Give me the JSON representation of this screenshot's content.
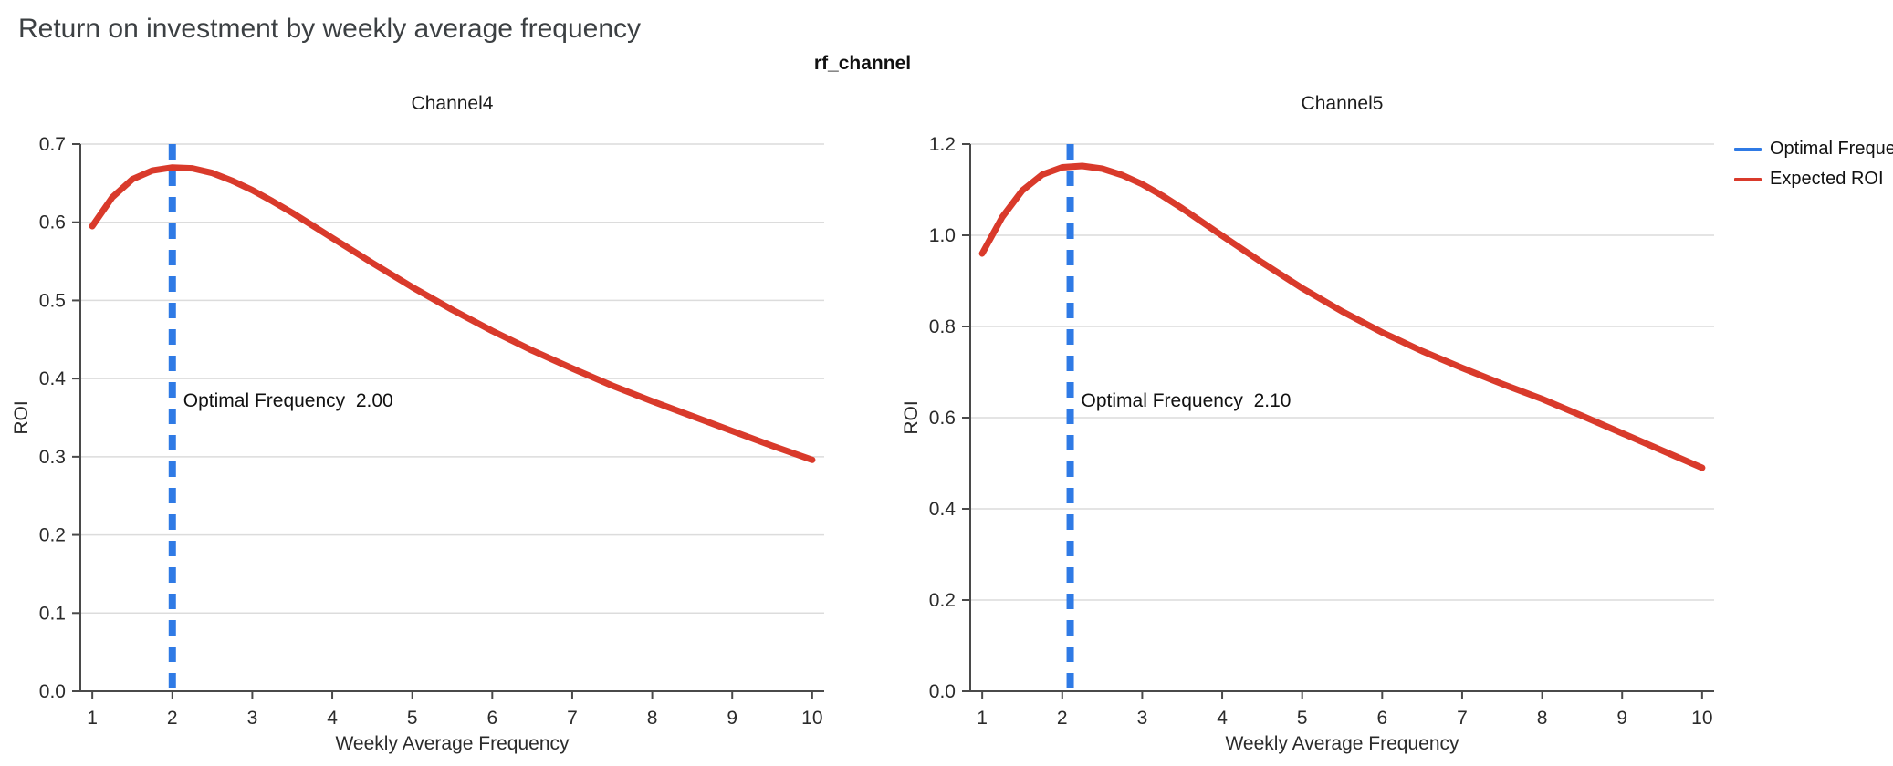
{
  "page_title": "Return on investment by weekly average frequency",
  "figure": {
    "suptitle": "rf_channel",
    "legend": {
      "position": "top-right",
      "items": [
        {
          "label": "Optimal Frequency",
          "color": "#2f7ae5",
          "style": "dashed"
        },
        {
          "label": "Expected ROI",
          "color": "#d93a2b",
          "style": "solid"
        }
      ]
    }
  },
  "chart_data": {
    "type": "line",
    "grid": "horizontal",
    "style": {
      "roi_line": "#d93a2b",
      "optimal_line": "#2f7ae5",
      "grid": "#dcdcdc",
      "axis": "#4a4a4a",
      "text": "#2b2b2b",
      "annotation_text": "#111111"
    },
    "charts": [
      {
        "title": "Channel4",
        "xlabel": "Weekly Average Frequency",
        "ylabel": "ROI",
        "xlim": [
          0.85,
          10.15
        ],
        "ylim": [
          0,
          0.7
        ],
        "xticks": [
          1,
          2,
          3,
          4,
          5,
          6,
          7,
          8,
          9,
          10
        ],
        "yticks": [
          0,
          0.1,
          0.2,
          0.3,
          0.4,
          0.5,
          0.6,
          0.7
        ],
        "optimal_frequency": 2.0,
        "annotation": {
          "label": "Optimal Frequency",
          "value": "2.00"
        },
        "series": [
          {
            "name": "Expected ROI",
            "x": [
              1,
              1.25,
              1.5,
              1.75,
              2,
              2.25,
              2.5,
              2.75,
              3,
              3.25,
              3.5,
              3.75,
              4,
              4.5,
              5,
              5.5,
              6,
              6.5,
              7,
              7.5,
              8,
              8.5,
              9,
              9.5,
              10
            ],
            "y": [
              0.595,
              0.632,
              0.655,
              0.666,
              0.67,
              0.669,
              0.663,
              0.653,
              0.641,
              0.627,
              0.612,
              0.596,
              0.58,
              0.548,
              0.517,
              0.488,
              0.461,
              0.436,
              0.413,
              0.391,
              0.371,
              0.352,
              0.333,
              0.314,
              0.296
            ]
          }
        ]
      },
      {
        "title": "Channel5",
        "xlabel": "Weekly Average Frequency",
        "ylabel": "ROI",
        "xlim": [
          0.85,
          10.15
        ],
        "ylim": [
          0,
          1.2
        ],
        "xticks": [
          1,
          2,
          3,
          4,
          5,
          6,
          7,
          8,
          9,
          10
        ],
        "yticks": [
          0,
          0.2,
          0.4,
          0.6,
          0.8,
          1.0,
          1.2
        ],
        "optimal_frequency": 2.1,
        "annotation": {
          "label": "Optimal Frequency",
          "value": "2.10"
        },
        "series": [
          {
            "name": "Expected ROI",
            "x": [
              1,
              1.25,
              1.5,
              1.75,
              2,
              2.25,
              2.5,
              2.75,
              3,
              3.25,
              3.5,
              3.75,
              4,
              4.5,
              5,
              5.5,
              6,
              6.5,
              7,
              7.5,
              8,
              8.5,
              9,
              9.5,
              10
            ],
            "y": [
              0.96,
              1.04,
              1.098,
              1.133,
              1.149,
              1.152,
              1.146,
              1.132,
              1.112,
              1.087,
              1.059,
              1.029,
              0.999,
              0.94,
              0.884,
              0.833,
              0.787,
              0.746,
              0.709,
              0.674,
              0.641,
              0.604,
              0.566,
              0.528,
              0.49
            ]
          }
        ]
      }
    ]
  }
}
